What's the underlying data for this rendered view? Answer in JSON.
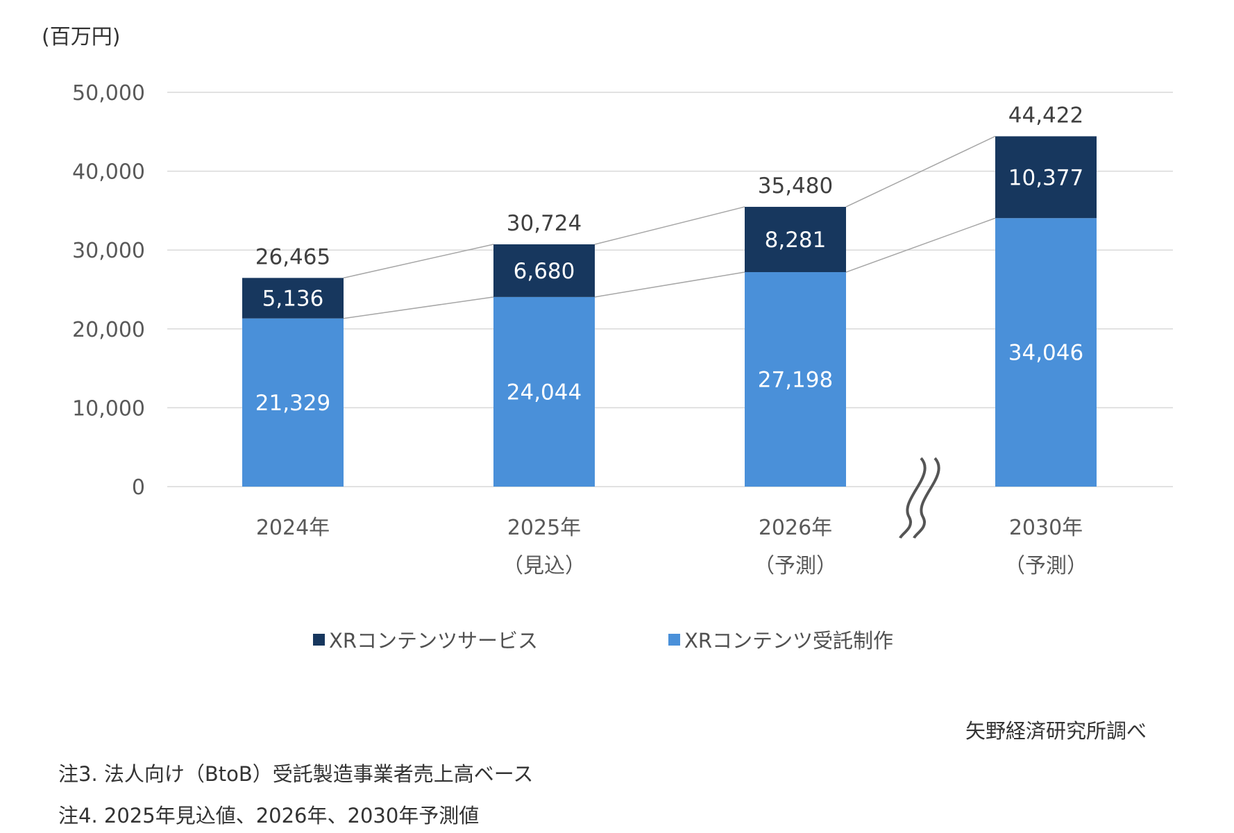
{
  "chart_data": {
    "type": "bar",
    "stacked": true,
    "unit_label": "(百万円)",
    "categories": [
      {
        "line1": "2024年",
        "line2": ""
      },
      {
        "line1": "2025年",
        "line2": "（見込）"
      },
      {
        "line1": "2026年",
        "line2": "（予測）"
      },
      {
        "line1": "2030年",
        "line2": "（予測）"
      }
    ],
    "series": [
      {
        "name": "XRコンテンツ受託制作",
        "color": "#4a90d9",
        "values": [
          21329,
          24044,
          27198,
          34046
        ],
        "labels": [
          "21,329",
          "24,044",
          "27,198",
          "34,046"
        ]
      },
      {
        "name": "XRコンテンツサービス",
        "color": "#17375e",
        "values": [
          5136,
          6680,
          8281,
          10377
        ],
        "labels": [
          "5,136",
          "6,680",
          "8,281",
          "10,377"
        ]
      }
    ],
    "totals": [
      "26,465",
      "30,724",
      "35,480",
      "44,422"
    ],
    "ylim": [
      0,
      50000
    ],
    "yticks": [
      "0",
      "10,000",
      "20,000",
      "30,000",
      "40,000",
      "50,000"
    ],
    "grid": true,
    "axis_break_between": [
      "2026年",
      "2030年"
    ],
    "legend_position": "bottom",
    "legend": [
      "XRコンテンツサービス",
      "XRコンテンツ受託制作"
    ]
  },
  "source": "矢野経済研究所調べ",
  "notes": [
    "注3. 法人向け（BtoB）受託製造事業者売上高ベース",
    "注4. 2025年見込値、2026年、2030年予測値"
  ]
}
